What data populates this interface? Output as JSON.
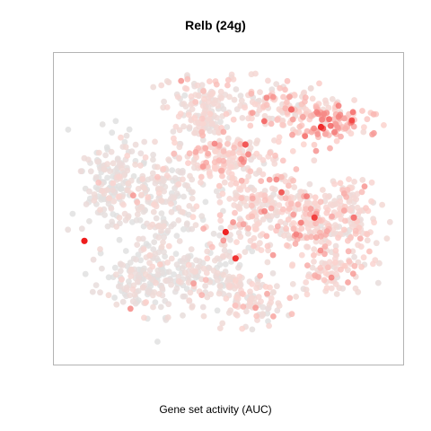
{
  "chart_data": {
    "type": "scatter",
    "title": "Relb (24g)",
    "xlabel": "Gene set activity (AUC)",
    "ylabel": "",
    "grid": false,
    "legend": "none",
    "axes_ticks": false,
    "color_scale": {
      "low": "#e0e0e0",
      "mid": "#fbd4cf",
      "high": "#ee1c1c"
    },
    "xlim": [
      0,
      100
    ],
    "ylim": [
      0,
      100
    ],
    "clusters": [
      {
        "cx": 44,
        "cy": 88,
        "rx": 16,
        "ry": 8,
        "n": 110,
        "activity": 0.22
      },
      {
        "cx": 68,
        "cy": 84,
        "rx": 14,
        "ry": 9,
        "n": 130,
        "activity": 0.36
      },
      {
        "cx": 81,
        "cy": 79,
        "rx": 11,
        "ry": 7,
        "n": 90,
        "activity": 0.5
      },
      {
        "cx": 14,
        "cy": 60,
        "rx": 10,
        "ry": 16,
        "n": 170,
        "activity": 0.07
      },
      {
        "cx": 30,
        "cy": 55,
        "rx": 12,
        "ry": 18,
        "n": 180,
        "activity": 0.14
      },
      {
        "cx": 48,
        "cy": 68,
        "rx": 11,
        "ry": 9,
        "n": 120,
        "activity": 0.34
      },
      {
        "cx": 58,
        "cy": 52,
        "rx": 14,
        "ry": 16,
        "n": 190,
        "activity": 0.3
      },
      {
        "cx": 74,
        "cy": 46,
        "rx": 11,
        "ry": 13,
        "n": 160,
        "activity": 0.32
      },
      {
        "cx": 87,
        "cy": 47,
        "rx": 9,
        "ry": 12,
        "n": 110,
        "activity": 0.3
      },
      {
        "cx": 24,
        "cy": 26,
        "rx": 14,
        "ry": 11,
        "n": 170,
        "activity": 0.09
      },
      {
        "cx": 44,
        "cy": 28,
        "rx": 12,
        "ry": 12,
        "n": 140,
        "activity": 0.16
      },
      {
        "cx": 58,
        "cy": 18,
        "rx": 10,
        "ry": 8,
        "n": 90,
        "activity": 0.22
      },
      {
        "cx": 82,
        "cy": 28,
        "rx": 9,
        "ry": 8,
        "n": 80,
        "activity": 0.3
      },
      {
        "cx": 42,
        "cy": 79,
        "rx": 6,
        "ry": 4,
        "n": 50,
        "activity": 0.2
      }
    ],
    "highlights": [
      {
        "x": 6,
        "y": 39,
        "activity": 1.0
      },
      {
        "x": 49,
        "y": 42,
        "activity": 0.98
      },
      {
        "x": 52,
        "y": 33,
        "activity": 0.92
      },
      {
        "x": 78,
        "y": 78,
        "activity": 0.95
      },
      {
        "x": 76,
        "y": 47,
        "activity": 0.88
      },
      {
        "x": 55,
        "y": 72,
        "activity": 0.8
      },
      {
        "x": 69,
        "y": 84,
        "activity": 0.75
      },
      {
        "x": 88,
        "y": 47,
        "activity": 0.7
      }
    ]
  }
}
